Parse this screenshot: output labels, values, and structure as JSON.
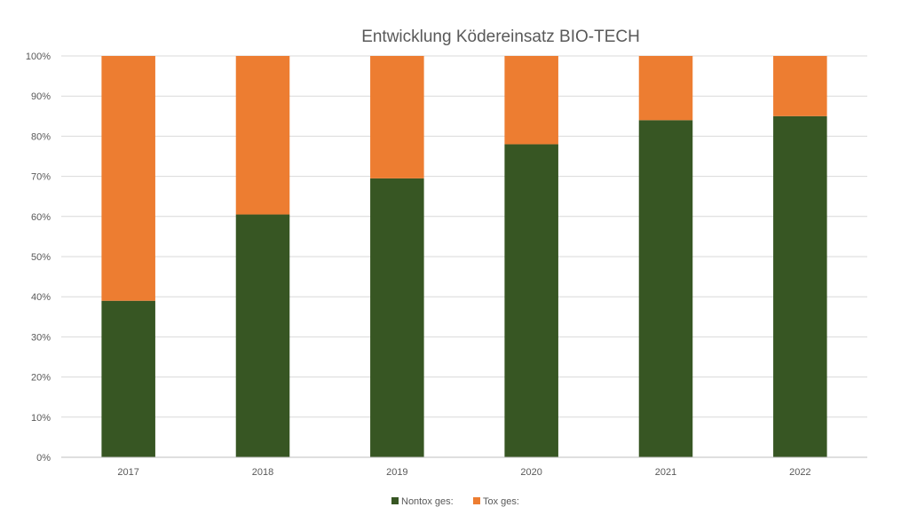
{
  "chart_data": {
    "type": "bar",
    "stacked": true,
    "normalized": true,
    "title": "Entwicklung Ködereinsatz BIO-TECH",
    "categories": [
      "2017",
      "2018",
      "2019",
      "2020",
      "2021",
      "2022"
    ],
    "series": [
      {
        "name": "Nontox ges:",
        "color": "#375623",
        "values": [
          39,
          60.5,
          69.5,
          78,
          84,
          85
        ]
      },
      {
        "name": "Tox ges:",
        "color": "#ED7D31",
        "values": [
          61,
          39.5,
          30.5,
          22,
          16,
          15
        ]
      }
    ],
    "ylim": [
      0,
      100
    ],
    "yticks": [
      "0%",
      "10%",
      "20%",
      "30%",
      "40%",
      "50%",
      "60%",
      "70%",
      "80%",
      "90%",
      "100%"
    ],
    "grid": true,
    "legend_position": "bottom"
  }
}
